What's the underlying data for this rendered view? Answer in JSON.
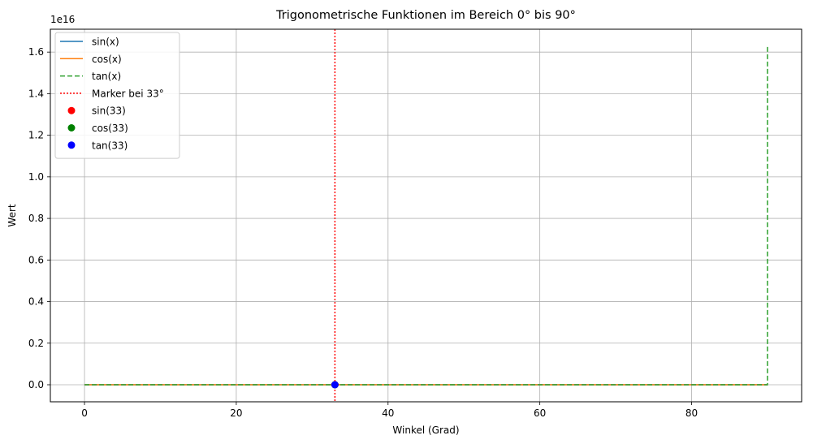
{
  "chart_data": {
    "type": "line",
    "title": "Trigonometrische Funktionen im Bereich 0° bis 90°",
    "xlabel": "Winkel (Grad)",
    "ylabel": "Wert",
    "y_offset_label": "1e16",
    "y_scale_factor": 1e+16,
    "xlim": [
      -4.5,
      94.5
    ],
    "ylim": [
      -0.082,
      1.71
    ],
    "x_ticks": [
      0,
      20,
      40,
      60,
      80
    ],
    "x_tick_labels": [
      "0",
      "20",
      "40",
      "60",
      "80"
    ],
    "y_ticks": [
      0.0,
      0.2,
      0.4,
      0.6,
      0.8,
      1.0,
      1.2,
      1.4,
      1.6
    ],
    "y_tick_labels": [
      "0.0",
      "0.2",
      "0.4",
      "0.6",
      "0.8",
      "1.0",
      "1.2",
      "1.4",
      "1.6"
    ],
    "grid": true,
    "legend_position": "top-left",
    "series": [
      {
        "name": "sin(x)",
        "kind": "line",
        "style": "solid",
        "color": "#1f77b4",
        "x": [
          0,
          90
        ],
        "y": [
          0,
          0
        ]
      },
      {
        "name": "cos(x)",
        "kind": "line",
        "style": "solid",
        "color": "#ff7f0e",
        "x": [
          0,
          90
        ],
        "y": [
          0,
          0
        ]
      },
      {
        "name": "tan(x)",
        "kind": "line",
        "style": "dashed",
        "color": "#2ca02c",
        "x": [
          0,
          89.9,
          90,
          90
        ],
        "y": [
          0,
          0,
          0,
          1.633
        ]
      },
      {
        "name": "Marker bei 33°",
        "kind": "vline",
        "style": "dotted",
        "color": "#ff0000",
        "x": 33
      },
      {
        "name": "sin(33)",
        "kind": "point",
        "color": "#ff0000",
        "x": 33,
        "y": 0
      },
      {
        "name": "cos(33)",
        "kind": "point",
        "color": "#008000",
        "x": 33,
        "y": 0
      },
      {
        "name": "tan(33)",
        "kind": "point",
        "color": "#0000ff",
        "x": 33,
        "y": 0
      }
    ]
  }
}
